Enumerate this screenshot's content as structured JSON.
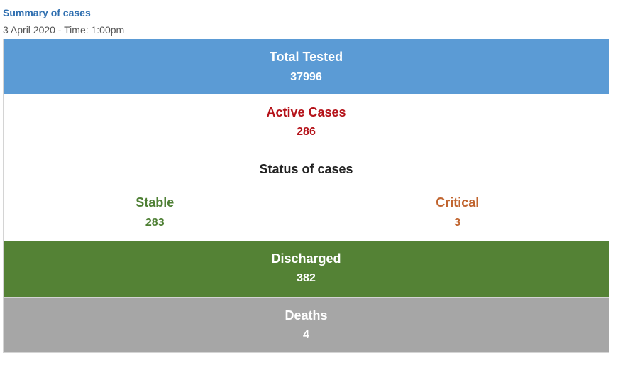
{
  "summary": {
    "title": "Summary of cases",
    "date": "3 April 2020 - Time: 1:00pm"
  },
  "rows": {
    "tested": {
      "label": "Total Tested",
      "value": "37996"
    },
    "active": {
      "label": "Active Cases",
      "value": "286"
    },
    "status": {
      "label": "Status of cases",
      "stable": {
        "label": "Stable",
        "value": "283"
      },
      "critical": {
        "label": "Critical",
        "value": "3"
      }
    },
    "discharged": {
      "label": "Discharged",
      "value": "382"
    },
    "deaths": {
      "label": "Deaths",
      "value": "4"
    }
  },
  "colors": {
    "tested_bg": "#5b9bd5",
    "active_text": "#b5131a",
    "stable_text": "#4f8035",
    "critical_text": "#c0642e",
    "discharged_bg": "#548235",
    "deaths_bg": "#a6a6a6"
  }
}
